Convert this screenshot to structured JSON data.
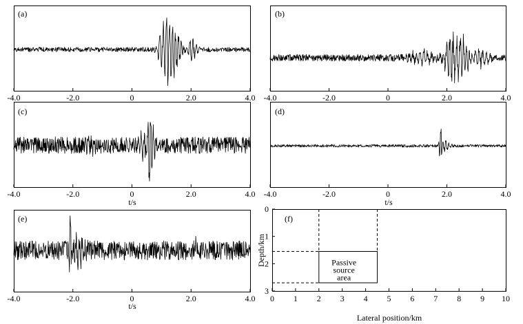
{
  "chart_data": [
    {
      "type": "line",
      "panel": "(a)",
      "xlabel": "",
      "xlim": [
        -4.0,
        4.0
      ],
      "xticks": [
        "-4.0",
        "-2.0",
        "0",
        "2.0",
        "4.0"
      ],
      "grid": false,
      "events": [
        {
          "t": 1.15,
          "amp": 0.95,
          "width": 0.35,
          "freq": 9
        },
        {
          "t": 1.45,
          "amp": 0.65,
          "width": 0.35,
          "freq": 10
        },
        {
          "t": 2.05,
          "amp": 0.35,
          "width": 0.3,
          "freq": 9
        }
      ],
      "noise": 0.06,
      "seed": 11
    },
    {
      "type": "line",
      "panel": "(b)",
      "xlabel": "",
      "xlim": [
        -4.0,
        4.0
      ],
      "xticks": [
        "-4.0",
        "-2.0",
        "0",
        "2.0",
        "4.0"
      ],
      "grid": false,
      "events": [
        {
          "t": 1.2,
          "amp": 0.25,
          "width": 0.7,
          "freq": 8
        },
        {
          "t": 2.2,
          "amp": 0.95,
          "width": 0.45,
          "freq": 9
        },
        {
          "t": 2.55,
          "amp": 0.65,
          "width": 0.35,
          "freq": 10
        },
        {
          "t": 3.2,
          "amp": 0.3,
          "width": 0.4,
          "freq": 8
        }
      ],
      "noise": 0.1,
      "seed": 23
    },
    {
      "type": "line",
      "panel": "(c)",
      "xlabel": "t/s",
      "xlim": [
        -4.0,
        4.0
      ],
      "xticks": [
        "-4.0",
        "-2.0",
        "0",
        "2.0",
        "4.0"
      ],
      "grid": false,
      "events": [
        {
          "t": 0.4,
          "amp": 0.45,
          "width": 0.3,
          "freq": 10
        },
        {
          "t": 0.62,
          "amp": 1.0,
          "width": 0.2,
          "freq": 11
        },
        {
          "t": -1.4,
          "amp": 0.2,
          "width": 0.2,
          "freq": 10
        }
      ],
      "noise": 0.22,
      "seed": 37
    },
    {
      "type": "line",
      "panel": "(d)",
      "xlabel": "t/s",
      "xlim": [
        -4.0,
        4.0
      ],
      "xticks": [
        "-4.0",
        "-2.0",
        "0",
        "2.0",
        "4.0"
      ],
      "grid": false,
      "events": [
        {
          "t": 1.78,
          "amp": 1.0,
          "width": 0.07,
          "freq": 12
        },
        {
          "t": 1.95,
          "amp": 0.25,
          "width": 0.25,
          "freq": 10
        }
      ],
      "noise": 0.05,
      "seed": 53
    },
    {
      "type": "line",
      "panel": "(e)",
      "xlabel": "t/s",
      "xlim": [
        -4.0,
        4.0
      ],
      "xticks": [
        "-4.0",
        "-2.0",
        "0",
        "2.0",
        "4.0"
      ],
      "grid": false,
      "events": [
        {
          "t": -2.1,
          "amp": 1.0,
          "width": 0.08,
          "freq": 12
        },
        {
          "t": -1.8,
          "amp": 0.45,
          "width": 0.3,
          "freq": 10
        },
        {
          "t": 2.15,
          "amp": 0.35,
          "width": 0.1,
          "freq": 11
        }
      ],
      "noise": 0.25,
      "seed": 71
    }
  ],
  "model_panel": {
    "panel": "(f)",
    "xlabel": "Lateral position/km",
    "ylabel": "Depth/km",
    "xlim": [
      0,
      10
    ],
    "ylim": [
      0,
      3
    ],
    "xticks": [
      "0",
      "1",
      "2",
      "3",
      "4",
      "5",
      "6",
      "7",
      "8",
      "9",
      "10"
    ],
    "yticks": [
      "0",
      "1",
      "2",
      "3"
    ],
    "source_area": {
      "x": [
        2,
        4.5
      ],
      "depth": [
        1.55,
        2.7
      ],
      "label_lines": [
        "Passive",
        "source",
        "area"
      ]
    },
    "dashed_guides": {
      "vertical_x": [
        2,
        4.5
      ],
      "horizontal_depth": [
        1.55,
        2.7
      ]
    }
  }
}
